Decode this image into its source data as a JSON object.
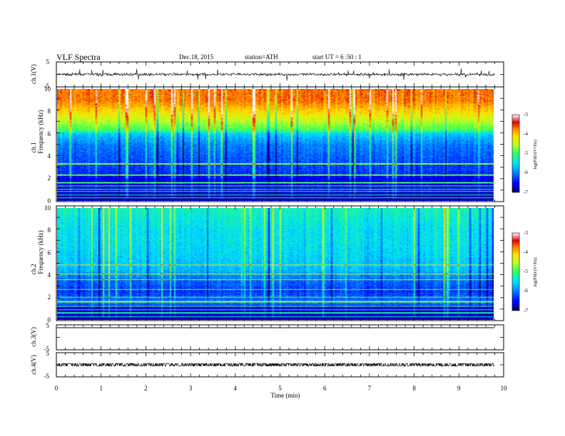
{
  "header": {
    "title": "VLF  Spectra",
    "date": "Dec.18, 2015",
    "station": "station=ATH",
    "start": "start  UT  =   6  :50 : 1"
  },
  "colors": {
    "axis": "#000000",
    "spectrogram_scale": [
      "#000080",
      "#0000ff",
      "#0080ff",
      "#00e0ff",
      "#40ff80",
      "#c0ff20",
      "#ffe000",
      "#ff8000",
      "#e00000",
      "#ffffff"
    ]
  },
  "chart_data": [
    {
      "type": "line",
      "name": "waveform-ch1",
      "ylabel": "ch.1(V)",
      "yticks": [
        "5",
        "-5"
      ],
      "ylim": [
        -5,
        5
      ],
      "xlim": [
        0,
        10
      ],
      "baseline": 0,
      "amplitude_typical": 0.8,
      "spike_amplitude": 2.5
    },
    {
      "type": "heatmap",
      "name": "spectrogram-ch1",
      "ylabel": "Frequency  (kHz)",
      "channel_label": "ch.1",
      "yticks": [
        "10",
        "8",
        "6",
        "4",
        "2",
        "0"
      ],
      "ylim": [
        0,
        10
      ],
      "xlim": [
        0,
        9.8
      ],
      "colorbar": {
        "label": "log(PSD/(V²/Hz)",
        "ticks": [
          "-3",
          "-4",
          "-5",
          "-6",
          "-7"
        ],
        "range": [
          -7,
          -3
        ]
      },
      "profile_freq_khz": [
        0,
        1,
        2,
        2.6,
        3.5,
        5,
        6,
        6.3,
        7,
        8,
        9,
        10
      ],
      "profile_logpsd": [
        -6.9,
        -6.5,
        -6.6,
        -6.3,
        -6.2,
        -6.0,
        -5.6,
        -5.0,
        -4.6,
        -4.1,
        -3.7,
        -3.7
      ],
      "horizontal_lines_khz": [
        0.25,
        0.5,
        0.8,
        1.0,
        1.3,
        1.6,
        2.3,
        3.3
      ]
    },
    {
      "type": "heatmap",
      "name": "spectrogram-ch2",
      "ylabel": "Frequency  (kHz)",
      "channel_label": "ch.2",
      "yticks": [
        "10",
        "8",
        "6",
        "4",
        "2",
        "0"
      ],
      "ylim": [
        0,
        10
      ],
      "xlim": [
        0,
        9.8
      ],
      "colorbar": {
        "label": "log(PSD/(V²/Hz)",
        "ticks": [
          "-3",
          "-4",
          "-5",
          "-6",
          "-7"
        ],
        "range": [
          -7,
          -3
        ]
      },
      "profile_freq_khz": [
        0,
        1,
        1.5,
        2.5,
        3.5,
        4.5,
        5.5,
        7,
        8,
        10
      ],
      "profile_logpsd": [
        -6.7,
        -6.6,
        -6.0,
        -6.3,
        -6.1,
        -5.7,
        -5.6,
        -5.5,
        -5.5,
        -5.3
      ],
      "horizontal_lines_khz": [
        0.25,
        0.6,
        0.9,
        1.2,
        1.6,
        2.0,
        2.7,
        3.6,
        4.1,
        4.9
      ]
    },
    {
      "type": "line",
      "name": "waveform-ch3",
      "ylabel": "ch.3(V)",
      "yticks": [
        "5",
        "-5"
      ],
      "ylim": [
        -5,
        5
      ],
      "xlim": [
        0,
        9.8
      ],
      "baseline": 5
    },
    {
      "type": "line",
      "name": "waveform-ch4",
      "ylabel": "ch.4(V)",
      "yticks": [
        "5",
        "-5"
      ],
      "ylim": [
        -5,
        5
      ],
      "xlim": [
        0,
        9.8
      ],
      "baseline": 0,
      "amplitude_typical": 0.6
    }
  ],
  "xaxis": {
    "label": "Time  (min)",
    "ticks": [
      "0",
      "1",
      "2",
      "3",
      "4",
      "5",
      "6",
      "7",
      "8",
      "9",
      "10"
    ],
    "range": [
      0,
      10
    ]
  }
}
